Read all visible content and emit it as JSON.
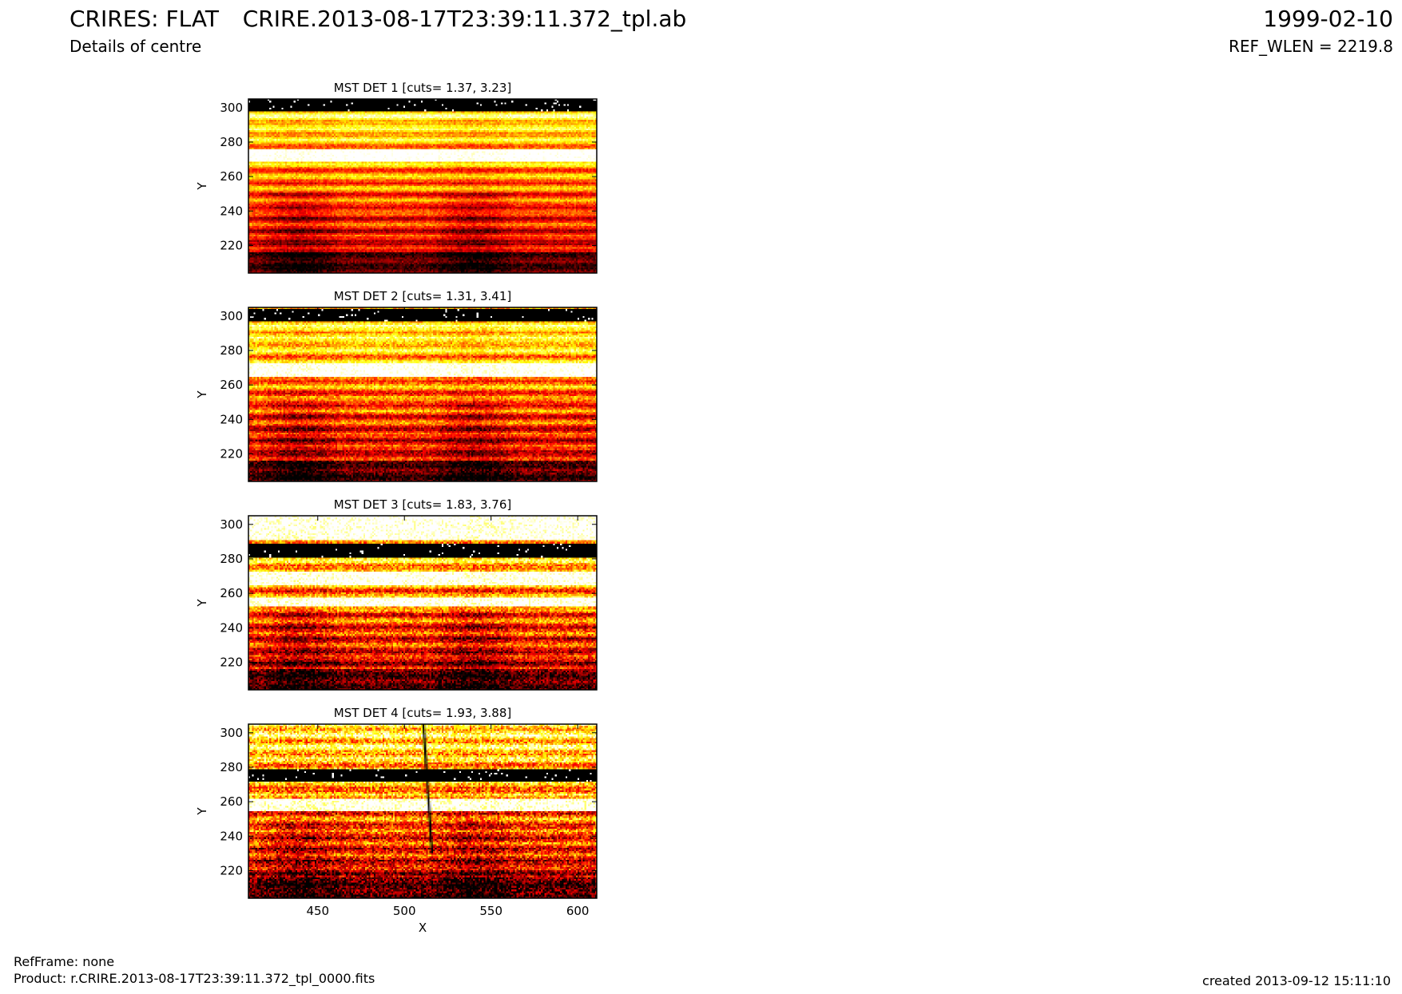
{
  "header": {
    "title": "CRIRES: FLAT",
    "subtitle": "Details of centre",
    "file": "CRIRE.2013-08-17T23:39:11.372_tpl.ab",
    "date": "1999-02-10",
    "ref_wlen": "REF_WLEN = 2219.8"
  },
  "footer": {
    "ref_frame": "RefFrame: none",
    "product": "Product: r.CRIRE.2013-08-17T23:39:11.372_tpl_0000.fits",
    "created": "created 2013-09-12 15:11:10"
  },
  "chart_data": [
    {
      "type": "heatmap",
      "title": "MST DET 1 [cuts= 1.37, 3.23]",
      "xlabel": "",
      "ylabel": "Y",
      "xlim": [
        410,
        611
      ],
      "ylim": [
        204,
        305
      ],
      "x_ticks": [],
      "x_tick_labels": [],
      "y_ticks": [
        220,
        240,
        260,
        280,
        300
      ],
      "y_tick_labels": [
        "220",
        "240",
        "260",
        "280",
        "300"
      ],
      "cuts": [
        1.37,
        3.23
      ],
      "colormap": "hot",
      "dark_band": [
        298,
        305
      ],
      "bright_bands": [
        [
          269,
          276
        ]
      ],
      "tilted_line": null
    },
    {
      "type": "heatmap",
      "title": "MST DET 2 [cuts= 1.31, 3.41]",
      "xlabel": "",
      "ylabel": "Y",
      "xlim": [
        410,
        611
      ],
      "ylim": [
        204,
        305
      ],
      "x_ticks": [],
      "x_tick_labels": [],
      "y_ticks": [
        220,
        240,
        260,
        280,
        300
      ],
      "y_tick_labels": [
        "220",
        "240",
        "260",
        "280",
        "300"
      ],
      "cuts": [
        1.31,
        3.41
      ],
      "colormap": "hot",
      "dark_band": [
        297,
        304
      ],
      "bright_bands": [
        [
          265,
          273
        ]
      ],
      "tilted_line": null
    },
    {
      "type": "heatmap",
      "title": "MST DET 3 [cuts= 1.83, 3.76]",
      "xlabel": "",
      "ylabel": "Y",
      "xlim": [
        410,
        611
      ],
      "ylim": [
        204,
        305
      ],
      "x_ticks": [],
      "x_tick_labels": [],
      "y_ticks": [
        220,
        240,
        260,
        280,
        300
      ],
      "y_tick_labels": [
        "220",
        "240",
        "260",
        "280",
        "300"
      ],
      "cuts": [
        1.83,
        3.76
      ],
      "colormap": "hot",
      "dark_band": [
        281,
        289
      ],
      "bright_bands": [
        [
          291,
          305
        ],
        [
          265,
          273
        ],
        [
          252,
          258
        ]
      ],
      "tilted_line": null
    },
    {
      "type": "heatmap",
      "title": "MST DET 4 [cuts= 1.93, 3.88]",
      "xlabel": "X",
      "ylabel": "Y",
      "xlim": [
        410,
        611
      ],
      "ylim": [
        204,
        305
      ],
      "x_ticks": [
        450,
        500,
        550,
        600
      ],
      "x_tick_labels": [
        "450",
        "500",
        "550",
        "600"
      ],
      "y_ticks": [
        220,
        240,
        260,
        280,
        300
      ],
      "y_tick_labels": [
        "220",
        "240",
        "260",
        "280",
        "300"
      ],
      "cuts": [
        1.93,
        3.88
      ],
      "colormap": "hot",
      "dark_band": [
        272,
        279
      ],
      "bright_bands": [
        [
          255,
          262
        ]
      ],
      "tilted_line": [
        [
          511,
          305
        ],
        [
          516,
          230
        ]
      ]
    }
  ]
}
